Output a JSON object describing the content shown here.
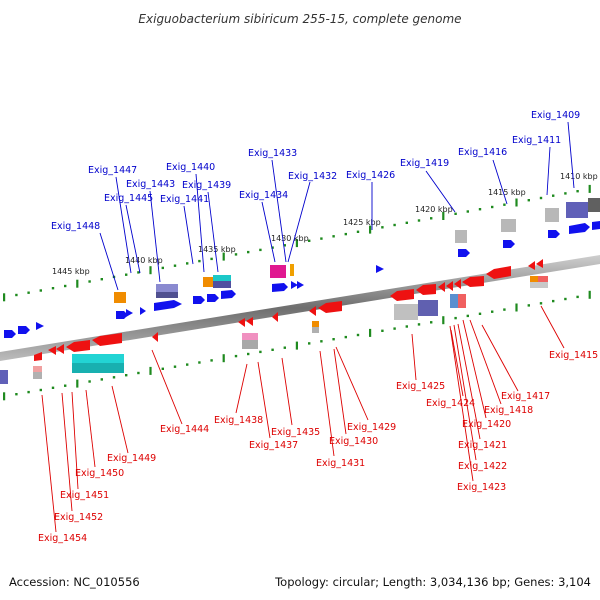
{
  "title": "Exiguobacterium sibiricum 255-15, complete genome",
  "footer": {
    "accession": "Accession: NC_010556",
    "summary": "Topology: circular; Length: 3,034,136 bp; Genes: 3,104"
  },
  "colors": {
    "forward_label": "#0000cc",
    "reverse_label": "#dd0000",
    "forward_gene": "#1111ee",
    "reverse_gene": "#ee1111",
    "tick": "#1f8a1f"
  },
  "ticks": [
    "1445 kbp",
    "1440 kbp",
    "1435 kbp",
    "1430 kbp",
    "1425 kbp",
    "1420 kbp",
    "1415 kbp",
    "1410 kbp"
  ],
  "forward_labels": [
    "Exig_1409",
    "Exig_1411",
    "Exig_1416",
    "Exig_1419",
    "Exig_1426",
    "Exig_1432",
    "Exig_1433",
    "Exig_1434",
    "Exig_1439",
    "Exig_1440",
    "Exig_1441",
    "Exig_1443",
    "Exig_1445",
    "Exig_1447",
    "Exig_1448"
  ],
  "reverse_labels": [
    "Exig_1415",
    "Exig_1417",
    "Exig_1418",
    "Exig_1420",
    "Exig_1421",
    "Exig_1422",
    "Exig_1423",
    "Exig_1424",
    "Exig_1425",
    "Exig_1429",
    "Exig_1430",
    "Exig_1431",
    "Exig_1435",
    "Exig_1437",
    "Exig_1438",
    "Exig_1444",
    "Exig_1449",
    "Exig_1450",
    "Exig_1451",
    "Exig_1452",
    "Exig_1454"
  ]
}
